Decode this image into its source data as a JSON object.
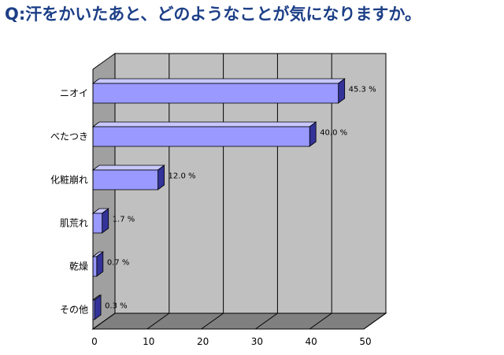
{
  "title": "Q:汗をかいたあと、どのようなことが気になりますか。",
  "colors": {
    "title": "#1d3f87",
    "bar_front": "#9999ff",
    "bar_top": "#c8c8ff",
    "bar_side": "#333399",
    "plot_back": "#c0c0c0",
    "plot_floor": "#808080"
  },
  "chart_data": {
    "type": "bar",
    "orientation": "horizontal",
    "three_d": true,
    "categories": [
      "ニオイ",
      "べたつき",
      "化粧崩れ",
      "肌荒れ",
      "乾燥",
      "その他"
    ],
    "values": [
      45.3,
      40.0,
      12.0,
      1.7,
      0.7,
      0.3
    ],
    "value_labels": [
      "45.3 %",
      "40.0 %",
      "12.0 %",
      "1.7 %",
      "0.7 %",
      "0.3 %"
    ],
    "xlim": [
      0,
      50
    ],
    "x_ticks": [
      0,
      10,
      20,
      30,
      40,
      50
    ],
    "grid": true,
    "legend": "none"
  }
}
